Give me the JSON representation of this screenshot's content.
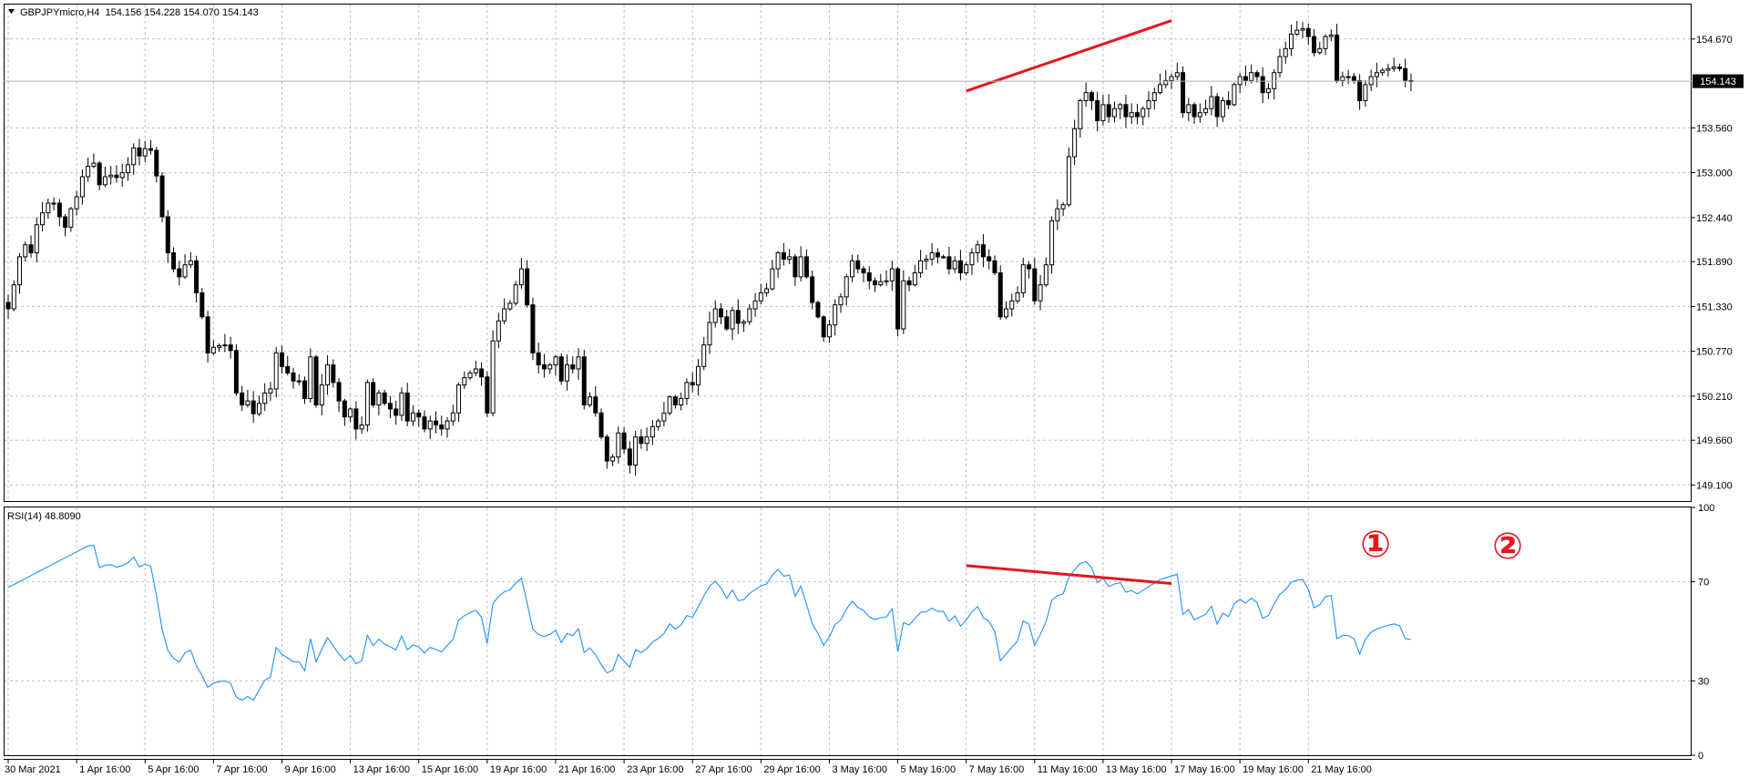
{
  "header": {
    "menu_icon": "triangle-down-icon",
    "title": "GBPJPYmicro,H4  154.156 154.228 154.070 154.143"
  },
  "rsi_panel": {
    "label": "RSI(14) 48.8090"
  },
  "current_price_badge": "154.143",
  "annotations": {
    "marker_1": "①",
    "marker_2": "②",
    "color": "#e8141e"
  },
  "colors": {
    "candle": "#000000",
    "rsi_line": "#1e90ff",
    "grid": "#c0c0c0",
    "trendline": "#e8141e",
    "background": "#ffffff"
  },
  "chart_data": [
    {
      "type": "candlestick",
      "symbol": "GBPJPYmicro",
      "timeframe": "H4",
      "ylim": [
        148.9,
        155.1
      ],
      "y_ticks": [
        "154.670",
        "154.143",
        "153.560",
        "153.000",
        "152.440",
        "151.890",
        "151.330",
        "150.770",
        "150.210",
        "149.660",
        "149.100"
      ],
      "x_ticks": [
        "30 Mar 2021",
        "1 Apr 16:00",
        "5 Apr 16:00",
        "7 Apr 16:00",
        "9 Apr 16:00",
        "13 Apr 16:00",
        "15 Apr 16:00",
        "19 Apr 16:00",
        "21 Apr 16:00",
        "23 Apr 16:00",
        "27 Apr 16:00",
        "29 Apr 16:00",
        "3 May 16:00",
        "5 May 16:00",
        "7 May 16:00",
        "11 May 16:00",
        "13 May 16:00",
        "17 May 16:00",
        "19 May 16:00",
        "21 May 16:00"
      ],
      "x_tick_bars": [
        0,
        12,
        24,
        36,
        48,
        60,
        72,
        84,
        96,
        108,
        120,
        132,
        144,
        156,
        168,
        180,
        192,
        204,
        216,
        228
      ],
      "close": [
        151.3,
        151.6,
        151.95,
        152.1,
        152.0,
        152.35,
        152.5,
        152.62,
        152.62,
        152.45,
        152.32,
        152.55,
        152.7,
        152.95,
        153.08,
        153.12,
        152.85,
        152.95,
        152.97,
        152.94,
        153.0,
        153.1,
        153.31,
        153.21,
        153.3,
        153.28,
        152.96,
        152.45,
        152.0,
        151.8,
        151.7,
        151.85,
        151.9,
        151.5,
        151.2,
        150.75,
        150.82,
        150.84,
        150.85,
        150.78,
        150.25,
        150.1,
        150.15,
        149.99,
        150.12,
        150.25,
        150.3,
        150.75,
        150.58,
        150.5,
        150.4,
        150.4,
        150.18,
        150.7,
        150.1,
        150.35,
        150.6,
        150.38,
        150.15,
        149.95,
        150.05,
        149.8,
        149.85,
        150.38,
        150.1,
        150.25,
        150.12,
        150.05,
        149.97,
        150.25,
        149.9,
        150.0,
        149.95,
        149.8,
        149.9,
        149.85,
        149.8,
        149.9,
        150.0,
        150.35,
        150.44,
        150.5,
        150.55,
        150.45,
        150.0,
        150.9,
        151.15,
        151.3,
        151.37,
        151.6,
        151.8,
        151.35,
        150.75,
        150.6,
        150.55,
        150.6,
        150.7,
        150.4,
        150.6,
        150.55,
        150.7,
        150.1,
        150.2,
        150.0,
        149.7,
        149.4,
        149.45,
        149.75,
        149.55,
        149.35,
        149.7,
        149.62,
        149.7,
        149.83,
        149.9,
        150.0,
        150.2,
        150.1,
        150.18,
        150.38,
        150.35,
        150.58,
        150.85,
        151.13,
        151.3,
        151.2,
        151.05,
        151.28,
        151.12,
        151.14,
        151.3,
        151.4,
        151.5,
        151.55,
        151.8,
        152.0,
        151.92,
        151.95,
        151.7,
        151.95,
        151.7,
        151.38,
        151.2,
        150.95,
        151.1,
        151.35,
        151.45,
        151.7,
        151.9,
        151.8,
        151.75,
        151.65,
        151.6,
        151.64,
        151.65,
        151.8,
        151.05,
        151.65,
        151.6,
        151.75,
        151.9,
        151.92,
        152.0,
        151.95,
        151.95,
        151.8,
        151.9,
        151.75,
        151.85,
        152.0,
        152.1,
        151.95,
        151.9,
        151.75,
        151.2,
        151.3,
        151.4,
        151.5,
        151.85,
        151.8,
        151.4,
        151.6,
        151.85,
        152.4,
        152.55,
        152.6,
        153.2,
        153.55,
        153.9,
        154.0,
        153.9,
        153.65,
        153.85,
        153.7,
        153.8,
        153.85,
        153.7,
        153.75,
        153.7,
        153.8,
        153.9,
        154.0,
        154.1,
        154.15,
        154.2,
        154.25,
        153.75,
        153.85,
        153.7,
        153.75,
        153.8,
        153.95,
        153.7,
        153.9,
        153.85,
        154.1,
        154.2,
        154.15,
        154.25,
        154.2,
        154.0,
        154.05,
        154.25,
        154.45,
        154.55,
        154.73,
        154.78,
        154.8,
        154.7,
        154.5,
        154.55,
        154.7,
        154.72,
        154.15,
        154.2,
        154.2,
        154.15,
        153.9,
        154.1,
        154.2,
        154.25,
        154.28,
        154.3,
        154.32,
        154.3,
        154.15,
        154.14
      ],
      "markers": [
        {
          "shape": "line",
          "color": "#e8141e",
          "from": {
            "bar": 168,
            "price": 154.02
          },
          "to": {
            "bar": 204,
            "price": 154.9
          }
        }
      ]
    },
    {
      "type": "line",
      "name": "RSI(14)",
      "ylim": [
        0,
        100
      ],
      "y_ticks": [
        100,
        70,
        30,
        0
      ],
      "markers": [
        {
          "shape": "line",
          "color": "#e8141e",
          "from": {
            "bar": 168,
            "value": 76.5
          },
          "to": {
            "bar": 204,
            "value": 69.3
          }
        }
      ]
    }
  ]
}
